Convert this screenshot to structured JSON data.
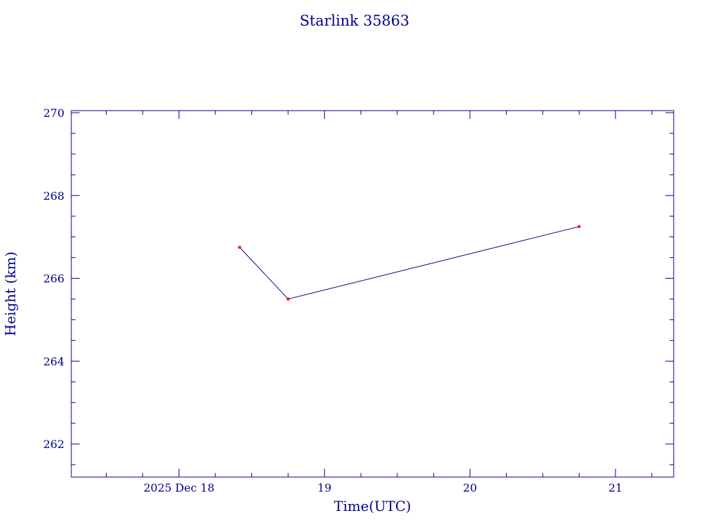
{
  "chart_data": {
    "type": "line",
    "title": "Starlink 35863",
    "xlabel": "Time(UTC)",
    "ylabel": "Height (km)",
    "x_tick_labels": [
      "2025 Dec 18",
      "19",
      "20",
      "21"
    ],
    "x_tick_days": [
      18,
      19,
      20,
      21
    ],
    "y_ticks": [
      262,
      264,
      266,
      268,
      270
    ],
    "xlim": [
      17.26,
      21.4
    ],
    "ylim": [
      261.2,
      270.05
    ],
    "grid": false,
    "series": [
      {
        "x": [
          "2025-12-18 10:00",
          "2025-12-18 18:00",
          "2025-12-20 18:00"
        ],
        "y": [
          266.75,
          265.5,
          267.25
        ]
      }
    ],
    "colors": {
      "axes": "#00008b",
      "line": "#00008b",
      "marker": "#ff0000"
    }
  }
}
